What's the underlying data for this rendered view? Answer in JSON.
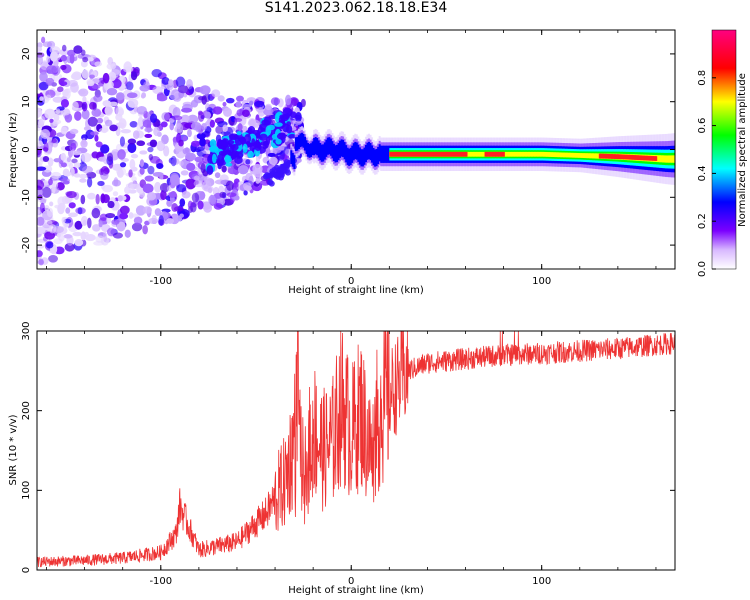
{
  "title": "S141.2023.062.18.18.E34",
  "chart_data": [
    {
      "type": "heatmap",
      "xlabel": "Height of straight line (km)",
      "ylabel": "Frequency (Hz)",
      "xlim": [
        -165,
        170
      ],
      "ylim": [
        -25,
        25
      ],
      "xticks": [
        -100,
        0,
        100
      ],
      "xtick_labels": [
        "-100",
        "0",
        "100"
      ],
      "yticks": [
        -20,
        -10,
        0,
        10,
        20
      ],
      "ytick_labels": [
        "-20",
        "-10",
        "0",
        "10",
        "20"
      ],
      "ridge": {
        "description_points": [
          {
            "x": -30,
            "y": 2
          },
          {
            "x": -20,
            "y": 0
          },
          {
            "x": -10,
            "y": 0
          },
          {
            "x": 0,
            "y": -1
          },
          {
            "x": 20,
            "y": -1
          },
          {
            "x": 60,
            "y": -1
          },
          {
            "x": 100,
            "y": -1
          },
          {
            "x": 140,
            "y": -1.5
          },
          {
            "x": 165,
            "y": -2
          }
        ]
      },
      "colorbar": {
        "label": "Normalized spectral amplitude",
        "range": [
          0,
          1
        ],
        "ticks": [
          0.0,
          0.2,
          0.4,
          0.6,
          0.8
        ],
        "tick_labels": [
          "0.0",
          "0.2",
          "0.4",
          "0.6",
          "0.8"
        ],
        "colors": [
          "#ffffff",
          "#7b00ff",
          "#0000ff",
          "#00ffff",
          "#00ff00",
          "#ffff00",
          "#ff0000",
          "#ff0080"
        ]
      },
      "grid": false
    },
    {
      "type": "line",
      "xlabel": "Height of straight line (km)",
      "ylabel": "SNR (10 * v/v)",
      "xlim": [
        -165,
        170
      ],
      "ylim": [
        0,
        300
      ],
      "xticks": [
        -100,
        0,
        100
      ],
      "xtick_labels": [
        "-100",
        "0",
        "100"
      ],
      "yticks": [
        0,
        100,
        200,
        300
      ],
      "ytick_labels": [
        "0",
        "100",
        "200",
        "300"
      ],
      "series": [
        {
          "color": "#ee3333",
          "x": [
            -165,
            -140,
            -120,
            -100,
            -92,
            -90,
            -80,
            -60,
            -45,
            -35,
            -30,
            -28,
            -25,
            -20,
            -15,
            -10,
            -5,
            0,
            5,
            10,
            15,
            20,
            30,
            40,
            60,
            80,
            100,
            120,
            140,
            170
          ],
          "y": [
            10,
            12,
            15,
            22,
            45,
            80,
            25,
            35,
            70,
            110,
            160,
            230,
            110,
            180,
            150,
            160,
            210,
            170,
            200,
            150,
            200,
            220,
            250,
            260,
            265,
            270,
            272,
            275,
            278,
            285
          ]
        }
      ],
      "grid": false
    }
  ]
}
